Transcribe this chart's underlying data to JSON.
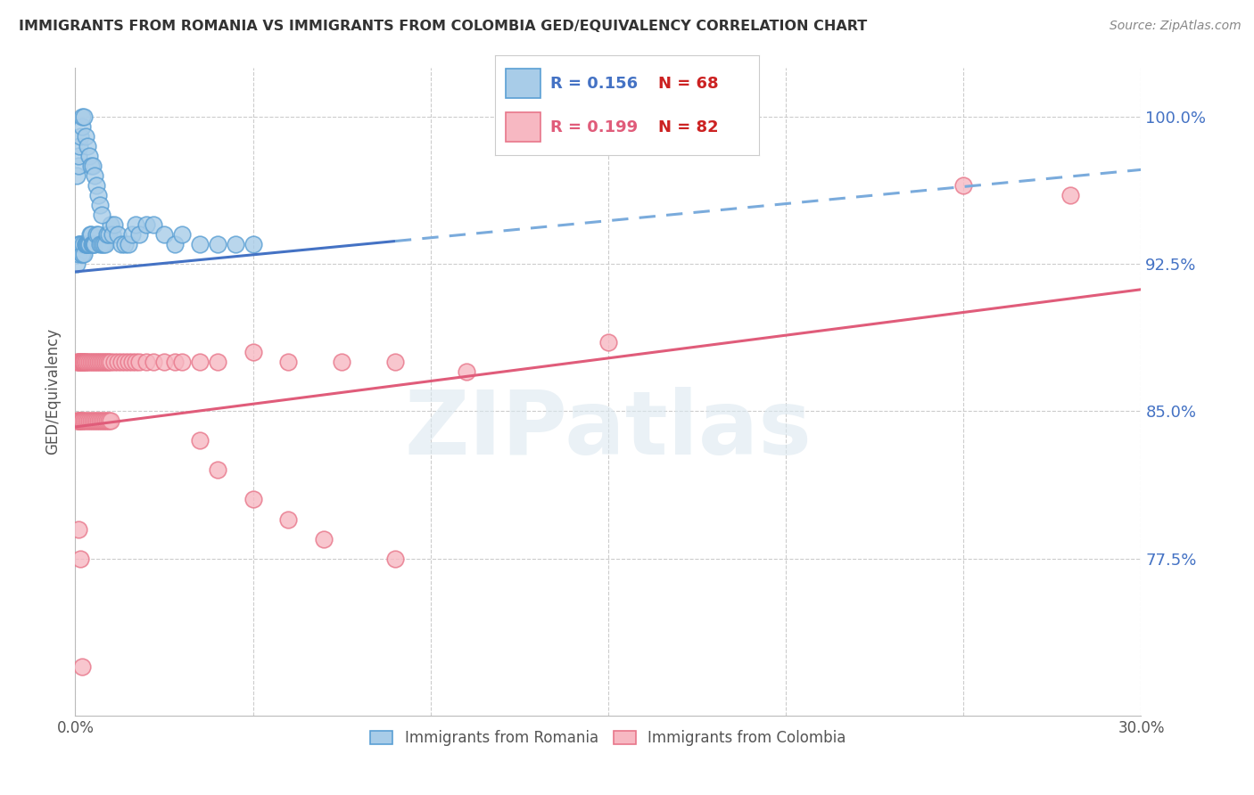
{
  "title": "IMMIGRANTS FROM ROMANIA VS IMMIGRANTS FROM COLOMBIA GED/EQUIVALENCY CORRELATION CHART",
  "source": "Source: ZipAtlas.com",
  "ylabel": "GED/Equivalency",
  "xlim": [
    0.0,
    30.0
  ],
  "ylim": [
    0.695,
    1.025
  ],
  "romania_color_face": "#a8cce8",
  "romania_color_edge": "#5a9fd4",
  "colombia_color_face": "#f7b8c2",
  "colombia_color_edge": "#e8768a",
  "watermark": "ZIPatlas",
  "romania_x": [
    0.05,
    0.08,
    0.1,
    0.12,
    0.15,
    0.18,
    0.2,
    0.22,
    0.25,
    0.28,
    0.3,
    0.32,
    0.35,
    0.38,
    0.4,
    0.42,
    0.45,
    0.48,
    0.5,
    0.52,
    0.55,
    0.6,
    0.65,
    0.7,
    0.75,
    0.8,
    0.85,
    0.9,
    0.95,
    1.0,
    1.05,
    1.1,
    1.2,
    1.3,
    1.4,
    1.5,
    1.6,
    1.7,
    1.8,
    2.0,
    2.2,
    2.5,
    2.8,
    3.0,
    3.5,
    4.0,
    4.5,
    5.0,
    0.05,
    0.08,
    0.1,
    0.12,
    0.15,
    0.18,
    0.2,
    0.25,
    0.3,
    0.35,
    0.4,
    0.45,
    0.5,
    0.55,
    0.6,
    0.65,
    0.7,
    0.75
  ],
  "romania_y": [
    0.925,
    0.935,
    0.93,
    0.935,
    0.935,
    0.93,
    0.93,
    0.935,
    0.93,
    0.935,
    0.935,
    0.935,
    0.935,
    0.935,
    0.935,
    0.94,
    0.94,
    0.935,
    0.935,
    0.935,
    0.935,
    0.94,
    0.94,
    0.935,
    0.935,
    0.935,
    0.935,
    0.94,
    0.94,
    0.945,
    0.94,
    0.945,
    0.94,
    0.935,
    0.935,
    0.935,
    0.94,
    0.945,
    0.94,
    0.945,
    0.945,
    0.94,
    0.935,
    0.94,
    0.935,
    0.935,
    0.935,
    0.935,
    0.97,
    0.975,
    0.98,
    0.985,
    0.99,
    0.995,
    1.0,
    1.0,
    0.99,
    0.985,
    0.98,
    0.975,
    0.975,
    0.97,
    0.965,
    0.96,
    0.955,
    0.95
  ],
  "colombia_x": [
    0.05,
    0.08,
    0.1,
    0.12,
    0.15,
    0.18,
    0.2,
    0.22,
    0.25,
    0.28,
    0.3,
    0.35,
    0.4,
    0.45,
    0.5,
    0.55,
    0.6,
    0.65,
    0.7,
    0.75,
    0.8,
    0.85,
    0.9,
    0.95,
    1.0,
    1.1,
    1.2,
    1.3,
    1.4,
    1.5,
    1.6,
    1.7,
    1.8,
    2.0,
    2.2,
    2.5,
    2.8,
    3.0,
    3.5,
    4.0,
    0.05,
    0.08,
    0.1,
    0.12,
    0.15,
    0.18,
    0.2,
    0.25,
    0.3,
    0.35,
    0.4,
    0.45,
    0.5,
    0.55,
    0.6,
    0.65,
    0.7,
    0.75,
    0.8,
    0.85,
    0.9,
    0.95,
    1.0,
    5.0,
    6.0,
    7.5,
    9.0,
    11.0,
    15.0,
    25.0,
    28.0,
    3.5,
    4.0,
    5.0,
    6.0,
    7.0,
    9.0,
    0.1,
    0.15,
    0.2
  ],
  "colombia_y": [
    0.875,
    0.875,
    0.875,
    0.875,
    0.875,
    0.875,
    0.875,
    0.875,
    0.875,
    0.875,
    0.875,
    0.875,
    0.875,
    0.875,
    0.875,
    0.875,
    0.875,
    0.875,
    0.875,
    0.875,
    0.875,
    0.875,
    0.875,
    0.875,
    0.875,
    0.875,
    0.875,
    0.875,
    0.875,
    0.875,
    0.875,
    0.875,
    0.875,
    0.875,
    0.875,
    0.875,
    0.875,
    0.875,
    0.875,
    0.875,
    0.845,
    0.845,
    0.845,
    0.845,
    0.845,
    0.845,
    0.845,
    0.845,
    0.845,
    0.845,
    0.845,
    0.845,
    0.845,
    0.845,
    0.845,
    0.845,
    0.845,
    0.845,
    0.845,
    0.845,
    0.845,
    0.845,
    0.845,
    0.88,
    0.875,
    0.875,
    0.875,
    0.87,
    0.885,
    0.965,
    0.96,
    0.835,
    0.82,
    0.805,
    0.795,
    0.785,
    0.775,
    0.79,
    0.775,
    0.72
  ],
  "ytick_pos": [
    0.775,
    0.85,
    0.925,
    1.0
  ],
  "ytick_labels": [
    "77.5%",
    "85.0%",
    "92.5%",
    "100.0%"
  ],
  "xtick_positions": [
    0,
    5,
    10,
    15,
    20,
    25,
    30
  ],
  "trend_blue_x0": 0.0,
  "trend_blue_x1": 30.0,
  "trend_blue_y0": 0.921,
  "trend_blue_y1": 0.973,
  "trend_blue_solid_end_x": 9.0,
  "trend_pink_x0": 0.0,
  "trend_pink_x1": 30.0,
  "trend_pink_y0": 0.842,
  "trend_pink_y1": 0.912,
  "bg_color": "#ffffff",
  "grid_color": "#cccccc",
  "text_color_blue": "#4472c4",
  "text_color_red": "#cc2222",
  "text_color_pink": "#e05c7a",
  "legend_R_romania": "R = 0.156",
  "legend_N_romania": "N = 68",
  "legend_R_colombia": "R = 0.199",
  "legend_N_colombia": "N = 82",
  "legend_label_romania": "Immigrants from Romania",
  "legend_label_colombia": "Immigrants from Colombia"
}
